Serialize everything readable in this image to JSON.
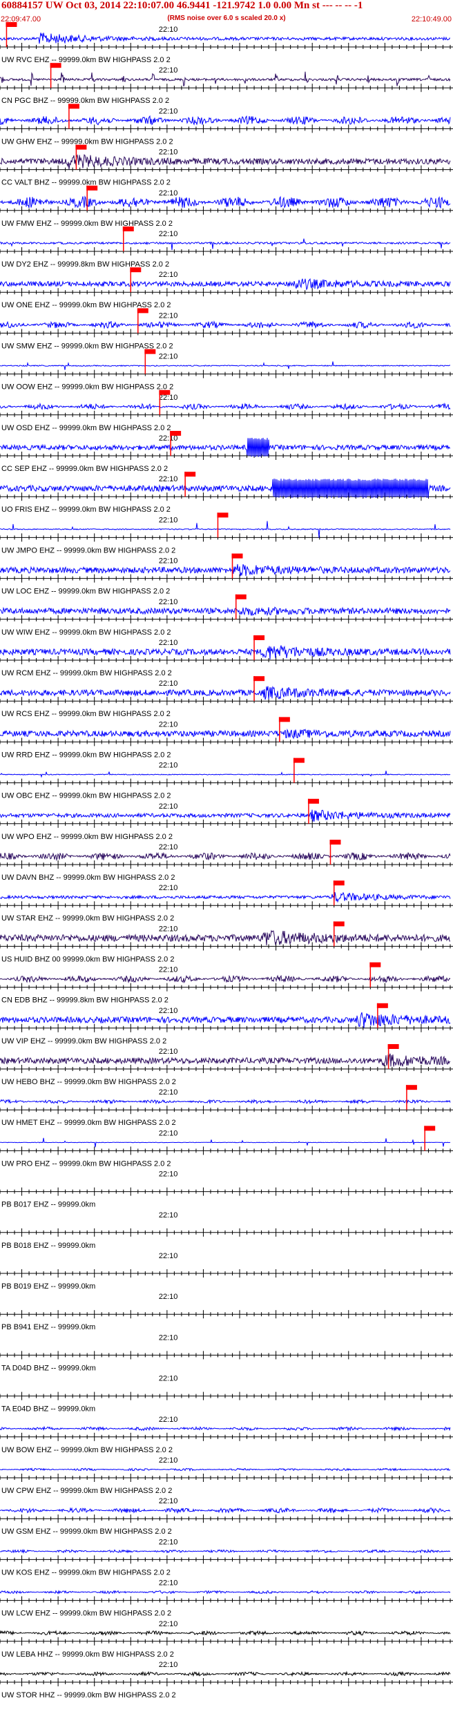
{
  "header": {
    "title": "60884157 UW Oct 03, 2014 22:10:07.00   46.9441 -121.9742  1.0 0.00 Mn st --- -- --  -1",
    "subtitle": "(RMS noise over 6.0 s scaled 20.0 x)",
    "start_time": "22:09:47.00",
    "end_time": "22:10:49.00"
  },
  "time_marker_label": "22:10",
  "colors": {
    "blue": "#0000ff",
    "navy": "#2a0a5e",
    "black": "#000000",
    "pick_red": "#ff0000",
    "header_red": "#cc0000"
  },
  "chart_data": {
    "type": "seismogram",
    "x_range_s": [
      0,
      62
    ],
    "traces": [
      {
        "label": "UW RVC EHZ -- 99999.0km BW  HIGHPASS  2.0  2",
        "color": "blue",
        "pick_s": 0.9,
        "style": "quake",
        "onset_s": 5,
        "amp": 0.7,
        "base": 0.15
      },
      {
        "label": "CN PGC BHZ -- 99999.0km BW  HIGHPASS  2.0  2",
        "color": "navy",
        "pick_s": 7.0,
        "style": "bursts",
        "period_s": 4.2,
        "amp": 0.95,
        "base": 0.12
      },
      {
        "label": "UW GHW EHZ -- 99999.0km BW  HIGHPASS  2.0  2",
        "color": "blue",
        "pick_s": 9.5,
        "style": "noise",
        "amp": 0.45
      },
      {
        "label": "CC VALT BHZ -- 99999.0km BW  HIGHPASS  2.0  2",
        "color": "navy",
        "pick_s": 10.5,
        "style": "quake",
        "onset_s": 9,
        "amp": 0.9,
        "base": 0.3
      },
      {
        "label": "UW FMW EHZ -- 99999.0km BW  HIGHPASS  2.0  2",
        "color": "blue",
        "pick_s": 12.0,
        "style": "noise",
        "amp": 0.6
      },
      {
        "label": "UW DY2 EHZ -- 99999.8km BW  HIGHPASS  2.0  2",
        "color": "blue",
        "pick_s": 17.0,
        "style": "spikes",
        "amp": 0.8,
        "base": 0.1
      },
      {
        "label": "UW ONE EHZ -- 99999.0km BW  HIGHPASS  2.0  2",
        "color": "blue",
        "pick_s": 18.0,
        "style": "quake",
        "onset_s": 40,
        "amp": 0.7,
        "base": 0.25
      },
      {
        "label": "UW SMW EHZ -- 99999.0km BW  HIGHPASS  2.0  2",
        "color": "blue",
        "pick_s": 19.0,
        "style": "noise",
        "amp": 0.35
      },
      {
        "label": "UW OOW EHZ -- 99999.0km BW  HIGHPASS  2.0  2",
        "color": "blue",
        "pick_s": 20.0,
        "style": "spikes",
        "amp": 0.5,
        "base": 0.05
      },
      {
        "label": "UW OSD EHZ -- 99999.0km BW  HIGHPASS  2.0  2",
        "color": "blue",
        "pick_s": 22.0,
        "style": "noise",
        "amp": 0.3
      },
      {
        "label": "CC SEP EHZ -- 99999.0km BW  HIGHPASS  2.0  2",
        "color": "blue",
        "pick_s": 23.5,
        "style": "clip",
        "onset_s": 34,
        "dur_s": 3,
        "amp": 1.0,
        "base": 0.25
      },
      {
        "label": "UO FRIS EHZ -- 99999.0km BW  HIGHPASS  2.0  2",
        "color": "blue",
        "pick_s": 25.5,
        "style": "clip",
        "onset_s": 37.5,
        "dur_s": 21.5,
        "amp": 1.0,
        "base": 0.3
      },
      {
        "label": "UW JMPO EHZ -- 99999.0km BW  HIGHPASS  2.0  2",
        "color": "blue",
        "pick_s": 30.0,
        "style": "spikes",
        "amp": 0.9,
        "base": 0.05
      },
      {
        "label": "UW LOC EHZ -- 99999.0km BW  HIGHPASS  2.0  2",
        "color": "blue",
        "pick_s": 32.0,
        "style": "quake",
        "onset_s": 32,
        "amp": 0.75,
        "base": 0.3
      },
      {
        "label": "UW WIW EHZ -- 99999.0km BW  HIGHPASS  2.0  2",
        "color": "blue",
        "pick_s": 32.5,
        "style": "quake",
        "onset_s": 32.5,
        "amp": 0.55,
        "base": 0.3
      },
      {
        "label": "UW RCM EHZ -- 99999.0km BW  HIGHPASS  2.0  2",
        "color": "blue",
        "pick_s": 35.0,
        "style": "quake",
        "onset_s": 36,
        "amp": 0.95,
        "base": 0.3
      },
      {
        "label": "UW RCS EHZ -- 99999.0km BW  HIGHPASS  2.0  2",
        "color": "blue",
        "pick_s": 35.0,
        "style": "quake",
        "onset_s": 36,
        "amp": 0.8,
        "base": 0.3
      },
      {
        "label": "UW RRD EHZ -- 99999.0km BW  HIGHPASS  2.0  2",
        "color": "blue",
        "pick_s": 38.5,
        "style": "quake",
        "onset_s": 39,
        "amp": 0.55,
        "base": 0.3
      },
      {
        "label": "UW OBC EHZ -- 99999.0km BW  HIGHPASS  2.0  2",
        "color": "blue",
        "pick_s": 40.5,
        "style": "spikes",
        "amp": 0.4,
        "base": 0.04
      },
      {
        "label": "UW WPO EHZ -- 99999.0km BW  HIGHPASS  2.0  2",
        "color": "blue",
        "pick_s": 42.5,
        "style": "quake",
        "onset_s": 42.5,
        "amp": 0.7,
        "base": 0.2
      },
      {
        "label": "UW DAVN BHZ -- 99999.0km BW  HIGHPASS  2.0  2",
        "color": "navy",
        "pick_s": 45.5,
        "style": "noise",
        "amp": 0.4
      },
      {
        "label": "UW STAR EHZ -- 99999.0km BW  HIGHPASS  2.0  2",
        "color": "blue",
        "pick_s": 46.0,
        "style": "quake",
        "onset_s": 45.5,
        "amp": 0.6,
        "base": 0.15
      },
      {
        "label": "US HUID BHZ 00 99999.0km BW  HIGHPASS  2.0  2",
        "color": "navy",
        "pick_s": 46.0,
        "style": "quake",
        "onset_s": 36,
        "amp": 1.0,
        "base": 0.35
      },
      {
        "label": "CN EDB BHZ -- 99999.8km BW  HIGHPASS  2.0  2",
        "color": "navy",
        "pick_s": 51.0,
        "style": "noise",
        "amp": 0.35
      },
      {
        "label": "UW VIP EHZ -- 99999.0km BW  HIGHPASS  2.0  2",
        "color": "blue",
        "pick_s": 52.0,
        "style": "quake",
        "onset_s": 49,
        "amp": 1.0,
        "base": 0.3
      },
      {
        "label": "UW HEBO BHZ -- 99999.0km BW  HIGHPASS  2.0  2",
        "color": "navy",
        "pick_s": 53.5,
        "style": "quake",
        "onset_s": 52.5,
        "amp": 0.85,
        "base": 0.3
      },
      {
        "label": "UW HMET EHZ -- 99999.0km BW  HIGHPASS  2.0  2",
        "color": "blue",
        "pick_s": 56.0,
        "style": "noise",
        "amp": 0.2
      },
      {
        "label": "UW PRO EHZ -- 99999.0km BW  HIGHPASS  2.0  2",
        "color": "blue",
        "pick_s": 58.5,
        "style": "spikes",
        "amp": 0.5,
        "base": 0.02
      },
      {
        "label": "PB B017 EHZ -- 99999.0km",
        "color": "blue",
        "style": "flat"
      },
      {
        "label": "PB B018 EHZ -- 99999.0km",
        "color": "blue",
        "style": "flat"
      },
      {
        "label": "PB B019 EHZ -- 99999.0km",
        "color": "blue",
        "style": "flat"
      },
      {
        "label": "PB B941 EHZ -- 99999.0km",
        "color": "blue",
        "style": "flat"
      },
      {
        "label": "TA D04D BHZ -- 99999.0km",
        "color": "blue",
        "style": "flat"
      },
      {
        "label": "TA E04D BHZ -- 99999.0km",
        "color": "blue",
        "style": "flat"
      },
      {
        "label": "UW BOW EHZ -- 99999.0km BW  HIGHPASS  2.0  2",
        "color": "blue",
        "style": "noise",
        "amp": 0.18
      },
      {
        "label": "UW CPW EHZ -- 99999.0km BW  HIGHPASS  2.0  2",
        "color": "blue",
        "style": "noise",
        "amp": 0.12
      },
      {
        "label": "UW GSM EHZ -- 99999.0km BW  HIGHPASS  2.0  2",
        "color": "blue",
        "style": "noise",
        "amp": 0.25
      },
      {
        "label": "UW KOS EHZ -- 99999.0km BW  HIGHPASS  2.0  2",
        "color": "blue",
        "style": "noise",
        "amp": 0.15
      },
      {
        "label": "UW LCW EHZ -- 99999.0km BW  HIGHPASS  2.0  2",
        "color": "blue",
        "style": "noise",
        "amp": 0.15
      },
      {
        "label": "UW LEBA HHZ -- 99999.0km BW  HIGHPASS  2.0  2",
        "color": "black",
        "style": "noise",
        "amp": 0.22
      },
      {
        "label": "UW STOR HHZ -- 99999.0km BW  HIGHPASS  2.0  2",
        "color": "black",
        "style": "noise",
        "amp": 0.2
      }
    ]
  }
}
